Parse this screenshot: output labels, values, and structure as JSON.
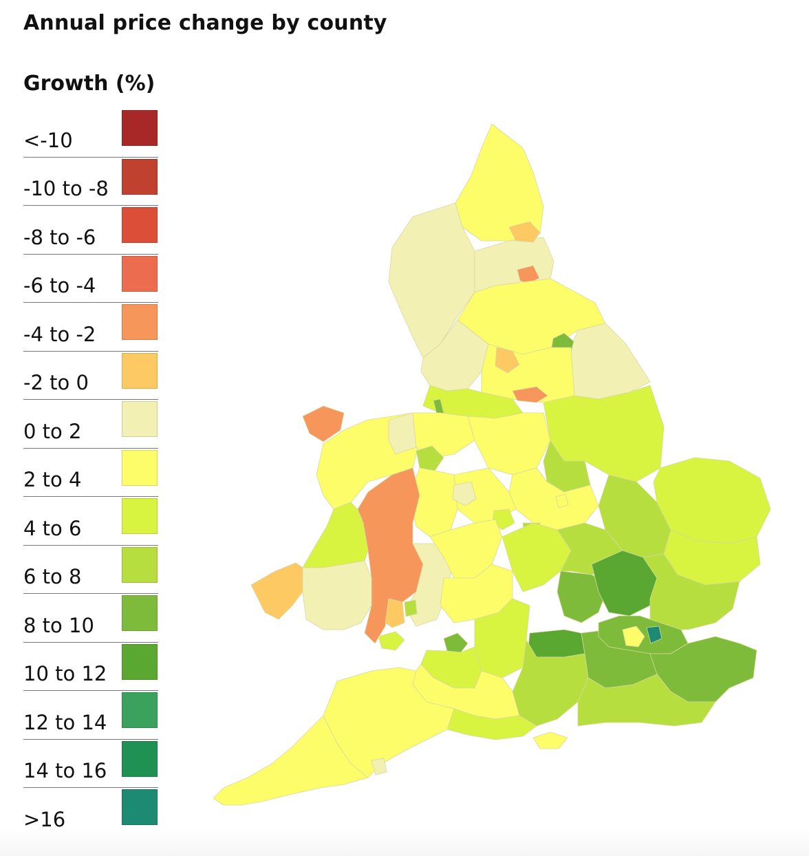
{
  "title": "Annual price change by county",
  "legend": {
    "title": "Growth (%)",
    "items": [
      {
        "label": "<-10",
        "color": "#a82828"
      },
      {
        "label": "-10 to -8",
        "color": "#c0412f"
      },
      {
        "label": "-8 to -6",
        "color": "#dd4e38"
      },
      {
        "label": "-6 to -4",
        "color": "#ec6c4f"
      },
      {
        "label": "-4 to -2",
        "color": "#f7965a"
      },
      {
        "label": "-2 to 0",
        "color": "#fcc962"
      },
      {
        "label": "0 to 2",
        "color": "#f2f0b2"
      },
      {
        "label": "2 to 4",
        "color": "#fdfd6a"
      },
      {
        "label": "4 to 6",
        "color": "#d8f440"
      },
      {
        "label": "6 to 8",
        "color": "#b5de3e"
      },
      {
        "label": "8 to 10",
        "color": "#7ebb3a"
      },
      {
        "label": "10 to 12",
        "color": "#5aa832"
      },
      {
        "label": "12 to 14",
        "color": "#3aa25c"
      },
      {
        "label": "14 to 16",
        "color": "#1f9153"
      },
      {
        "label": ">16",
        "color": "#1d8a73"
      }
    ]
  }
}
